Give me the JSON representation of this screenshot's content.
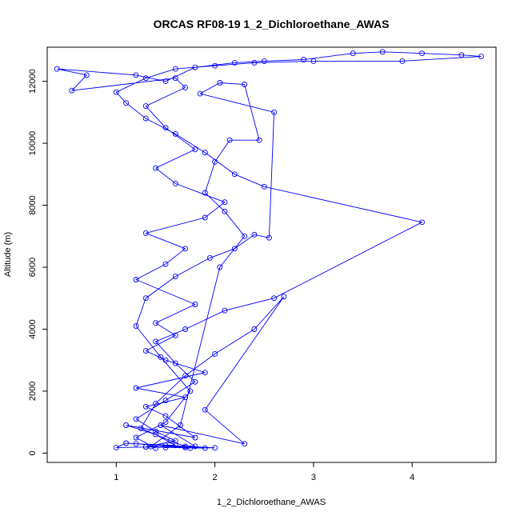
{
  "chart_data": {
    "type": "line",
    "title": "ORCAS RF08-19 1_2_Dichloroethane_AWAS",
    "xlabel": "1_2_Dichloroethane_AWAS",
    "ylabel": "Altitude (m)",
    "xlim": [
      0.3,
      4.85
    ],
    "ylim": [
      -300,
      13100
    ],
    "xticks": [
      1,
      2,
      3,
      4
    ],
    "yticks": [
      0,
      2000,
      4000,
      6000,
      8000,
      10000,
      12000
    ],
    "grid": false,
    "marker": "open-circle",
    "series_color": "#0000ff",
    "series": [
      {
        "values": [
          [
            1.5,
            180
          ],
          [
            1.7,
            220
          ],
          [
            1.3,
            200
          ],
          [
            1.9,
            160
          ],
          [
            1.2,
            300
          ],
          [
            1.6,
            250
          ],
          [
            1.4,
            600
          ],
          [
            1.1,
            900
          ],
          [
            1.8,
            500
          ],
          [
            1.5,
            1200
          ],
          [
            1.3,
            1500
          ],
          [
            1.7,
            1800
          ],
          [
            1.2,
            2100
          ],
          [
            1.9,
            2600
          ],
          [
            1.5,
            3000
          ],
          [
            1.3,
            3300
          ],
          [
            1.6,
            3800
          ],
          [
            1.4,
            4200
          ],
          [
            1.8,
            4800
          ],
          [
            1.2,
            5600
          ],
          [
            1.5,
            6100
          ],
          [
            1.7,
            6600
          ],
          [
            1.3,
            7100
          ],
          [
            1.9,
            7600
          ],
          [
            2.1,
            8100
          ],
          [
            1.6,
            8700
          ],
          [
            1.4,
            9200
          ],
          [
            1.8,
            9800
          ],
          [
            1.5,
            10500
          ],
          [
            1.3,
            11200
          ],
          [
            1.7,
            11800
          ],
          [
            1.6,
            12100
          ],
          [
            0.55,
            11700
          ],
          [
            0.7,
            12200
          ],
          [
            0.4,
            12400
          ],
          [
            1.2,
            12200
          ],
          [
            1.5,
            12000
          ],
          [
            1.8,
            12450
          ],
          [
            2.2,
            12600
          ],
          [
            2.5,
            12650
          ],
          [
            2.9,
            12700
          ],
          [
            3.4,
            12900
          ],
          [
            3.7,
            12950
          ],
          [
            4.1,
            12900
          ],
          [
            4.5,
            12850
          ],
          [
            4.7,
            12800
          ],
          [
            3.9,
            12650
          ],
          [
            3.0,
            12650
          ],
          [
            2.4,
            12600
          ],
          [
            2.0,
            12500
          ],
          [
            1.6,
            12400
          ],
          [
            1.3,
            12100
          ],
          [
            1.0,
            11650
          ],
          [
            1.1,
            11300
          ],
          [
            1.3,
            10800
          ],
          [
            1.6,
            10300
          ],
          [
            1.9,
            9700
          ],
          [
            2.2,
            9000
          ],
          [
            2.5,
            8600
          ],
          [
            4.1,
            7450
          ],
          [
            2.6,
            5000
          ],
          [
            2.1,
            4600
          ],
          [
            1.7,
            4000
          ],
          [
            1.4,
            3600
          ],
          [
            1.6,
            2900
          ],
          [
            1.8,
            2300
          ],
          [
            1.5,
            1700
          ],
          [
            1.2,
            1100
          ],
          [
            1.4,
            700
          ],
          [
            1.6,
            400
          ],
          [
            1.3,
            200
          ],
          [
            1.7,
            180
          ],
          [
            2.0,
            170
          ],
          [
            1.5,
            250
          ],
          [
            1.1,
            320
          ],
          [
            1.0,
            180
          ],
          [
            1.8,
            220
          ],
          [
            1.45,
            900
          ],
          [
            2.3,
            300
          ],
          [
            1.9,
            1400
          ],
          [
            2.7,
            5050
          ],
          [
            2.4,
            4000
          ],
          [
            2.0,
            3200
          ],
          [
            1.7,
            2500
          ],
          [
            1.4,
            1600
          ],
          [
            1.25,
            800
          ],
          [
            1.55,
            400
          ],
          [
            1.75,
            160
          ],
          [
            1.35,
            210
          ],
          [
            1.65,
            900
          ],
          [
            2.05,
            6000
          ],
          [
            2.3,
            7000
          ],
          [
            2.1,
            7800
          ],
          [
            1.9,
            8400
          ],
          [
            2.0,
            9400
          ],
          [
            2.15,
            10100
          ],
          [
            2.45,
            10100
          ],
          [
            2.3,
            11900
          ],
          [
            2.05,
            11950
          ],
          [
            1.85,
            11600
          ],
          [
            2.6,
            11000
          ],
          [
            2.55,
            6950
          ],
          [
            2.4,
            7050
          ],
          [
            2.2,
            6600
          ],
          [
            1.95,
            6300
          ],
          [
            1.6,
            5700
          ],
          [
            1.3,
            5000
          ],
          [
            1.2,
            4100
          ],
          [
            1.45,
            3100
          ],
          [
            1.75,
            2000
          ],
          [
            1.5,
            1000
          ],
          [
            1.2,
            500
          ],
          [
            1.4,
            160
          ]
        ]
      }
    ]
  }
}
